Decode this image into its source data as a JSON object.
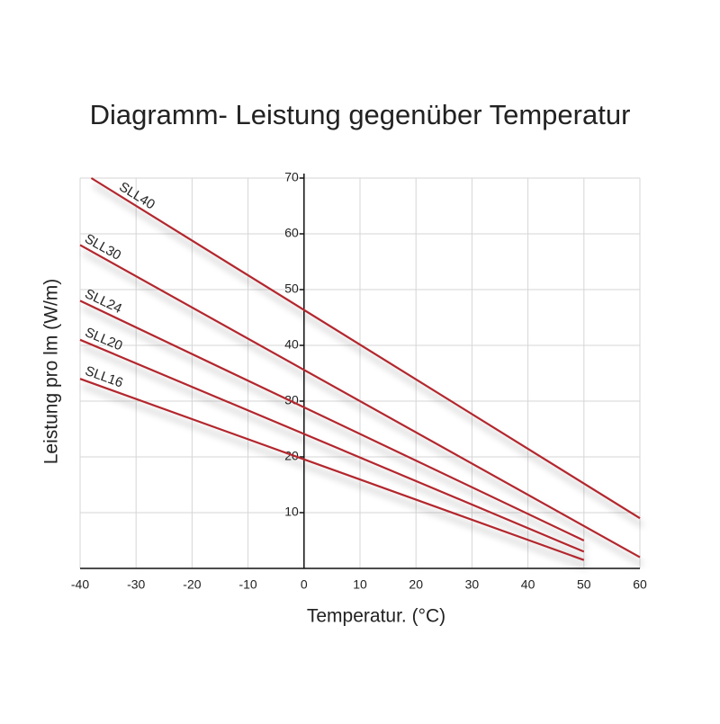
{
  "chart_data": {
    "type": "line",
    "title": "Diagramm- Leistung gegenüber Temperatur",
    "x_label": "Temperatur. (°C)",
    "y_label": "Leistung pro lm (W/m)",
    "xlim": [
      -40,
      60
    ],
    "ylim": [
      0,
      70
    ],
    "xticks": [
      -40,
      -30,
      -20,
      -10,
      0,
      10,
      20,
      30,
      40,
      50,
      60
    ],
    "yticks": [
      10,
      20,
      30,
      40,
      50,
      60,
      70
    ],
    "grid": true,
    "series": [
      {
        "name": "SLL40",
        "color": "#b3262d",
        "x": [
          -38,
          60
        ],
        "values": [
          70,
          9
        ]
      },
      {
        "name": "SLL30",
        "color": "#b3262d",
        "x": [
          -40,
          60
        ],
        "values": [
          58,
          2
        ]
      },
      {
        "name": "SLL24",
        "color": "#b3262d",
        "x": [
          -40,
          50
        ],
        "values": [
          48,
          5
        ]
      },
      {
        "name": "SLL20",
        "color": "#b3262d",
        "x": [
          -40,
          50
        ],
        "values": [
          41,
          3
        ]
      },
      {
        "name": "SLL16",
        "color": "#b3262d",
        "x": [
          -40,
          50
        ],
        "values": [
          34,
          1.5
        ]
      }
    ]
  }
}
